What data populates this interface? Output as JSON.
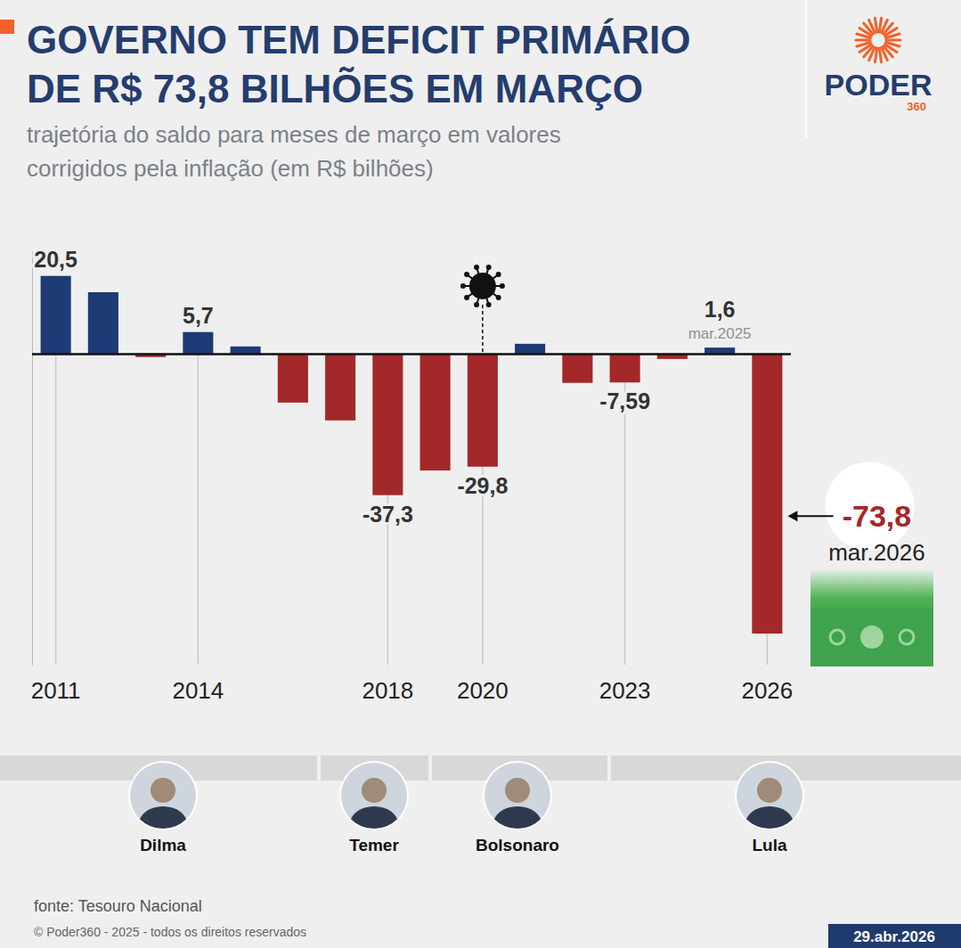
{
  "chart_data": {
    "type": "bar",
    "title": "GOVERNO TEM DEFICIT PRIMÁRIO DE R$ 73,8 BILHÕES EM MARÇO",
    "subtitle": "trajetória do saldo para meses de março em valores corrigidos pela inflação (em R$ bilhões)",
    "categories": [
      "2011",
      null,
      null,
      "2014",
      null,
      null,
      null,
      "2018",
      null,
      "2020",
      null,
      null,
      "2023",
      null,
      null,
      "2026"
    ],
    "values": [
      20.5,
      16.2,
      -0.9,
      5.7,
      1.9,
      -12.9,
      -17.6,
      -37.3,
      -30.8,
      -29.8,
      2.6,
      -7.7,
      -7.59,
      -1.4,
      1.6,
      -73.8
    ],
    "value_labels": [
      "20,5",
      null,
      null,
      "5,7",
      null,
      null,
      null,
      "-37,3",
      null,
      "-29,8",
      null,
      null,
      "-7,59",
      null,
      "1,6",
      "-73,8"
    ],
    "bar_notes": [
      null,
      null,
      null,
      null,
      null,
      null,
      null,
      null,
      null,
      null,
      null,
      null,
      null,
      null,
      "mar.2025",
      "mar.2026"
    ],
    "colors": [
      "#1d3b74",
      "#1d3b74",
      "#a3282a",
      "#1d3b74",
      "#1d3b74",
      "#a3282a",
      "#a3282a",
      "#a3282a",
      "#a3282a",
      "#a3282a",
      "#1d3b74",
      "#a3282a",
      "#a3282a",
      "#a3282a",
      "#1d3b74",
      "#a3282a"
    ],
    "ylim": [
      -82,
      27
    ],
    "yticks": [
      0
    ],
    "grid": false,
    "data_labels": true,
    "tick_labels": "x",
    "presidents": [
      "Dilma",
      "Temer",
      "Bolsonaro",
      "Lula"
    ],
    "source": "fonte: Tesouro Nacional",
    "copyright": "© Poder360 - 2025 - todos os direitos reservados",
    "date": "29.abr.2026",
    "logo": {
      "name": "PODER",
      "number": "360"
    }
  }
}
